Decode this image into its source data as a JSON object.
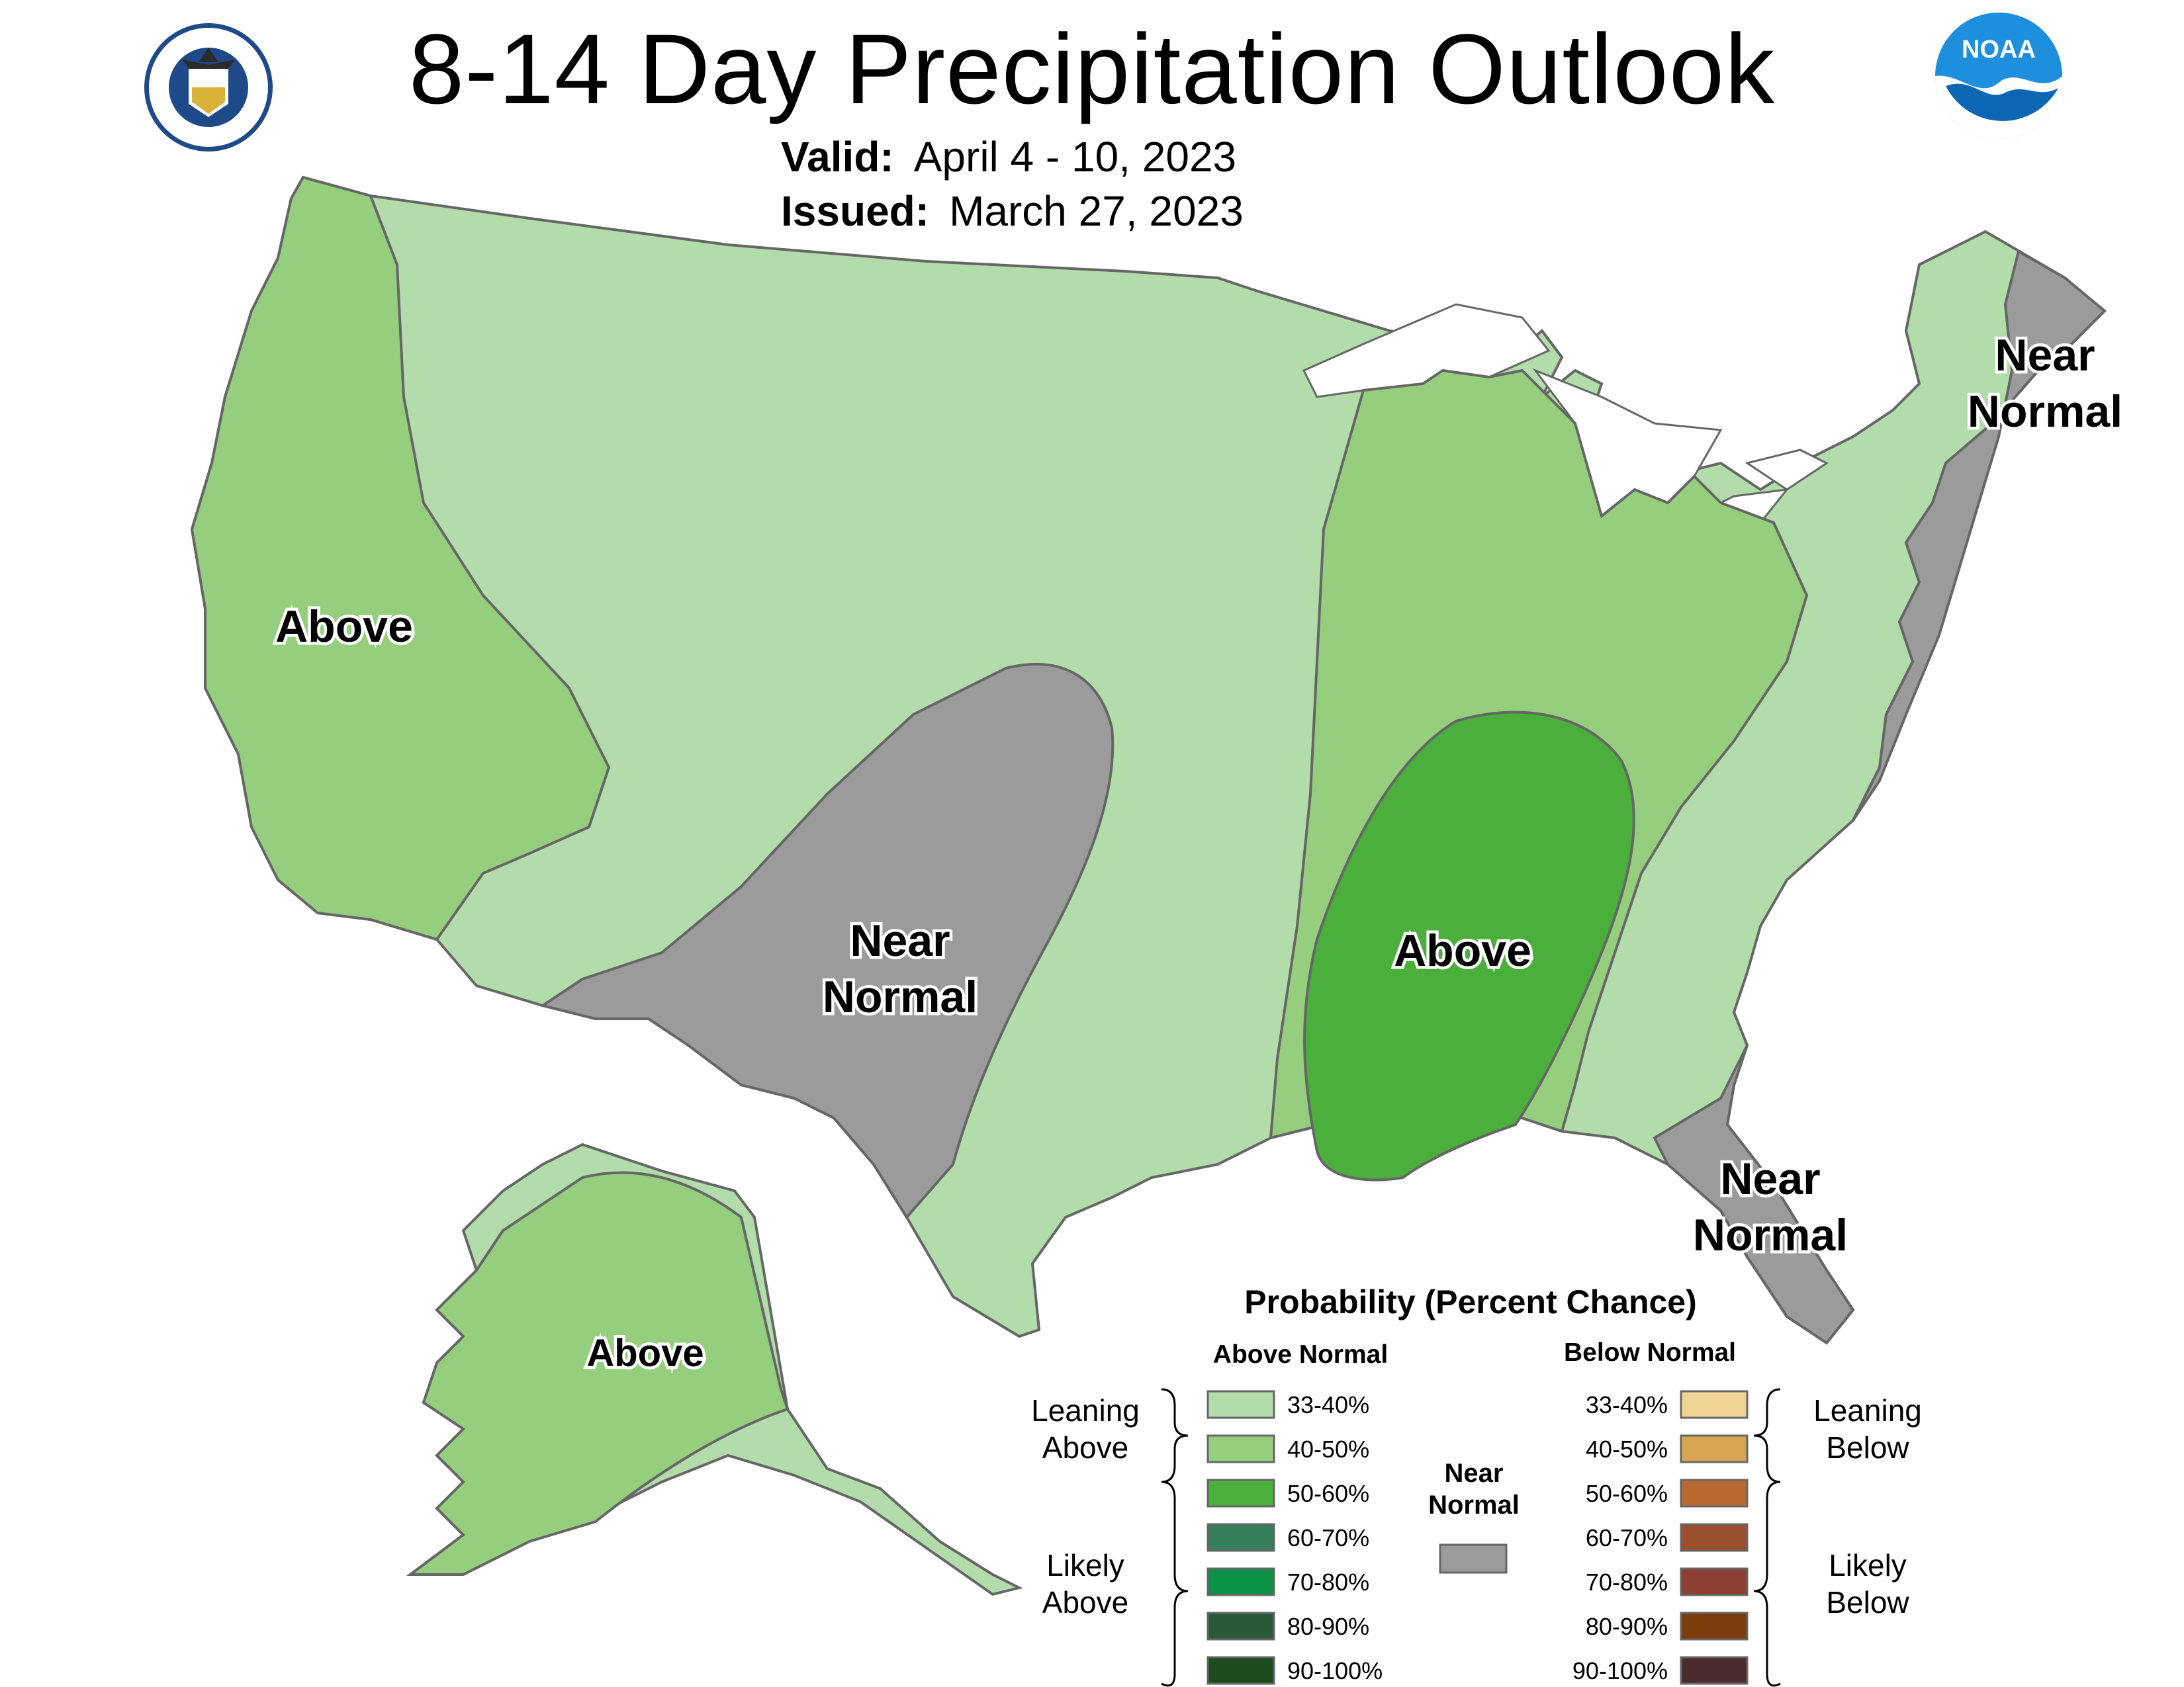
{
  "title": "8-14 Day Precipitation Outlook",
  "valid_label": "Valid:",
  "valid_value": "April 4 - 10, 2023",
  "issued_label": "Issued:",
  "issued_value": "March 27, 2023",
  "logos": {
    "commerce_seal": "DEPARTMENT OF COMMERCE · UNITED STATES OF AMERICA",
    "noaa": "NOAA"
  },
  "regions": [
    {
      "id": "west",
      "label": "Above"
    },
    {
      "id": "southwest",
      "label_line1": "Near",
      "label_line2": "Normal"
    },
    {
      "id": "midsouth",
      "label": "Above"
    },
    {
      "id": "northeast",
      "label_line1": "Near",
      "label_line2": "Normal"
    },
    {
      "id": "florida",
      "label_line1": "Near",
      "label_line2": "Normal"
    },
    {
      "id": "alaska",
      "label": "Above"
    }
  ],
  "colors": {
    "above_33_40": "#b3dcab",
    "above_40_50": "#95cf7e",
    "above_50_60": "#4aaf3b",
    "above_60_70": "#35805a",
    "above_70_80": "#0b9247",
    "above_80_90": "#295939",
    "above_90_100": "#1d4b1d",
    "near_normal": "#9b9b9b",
    "below_33_40": "#f0d495",
    "below_40_50": "#d8a650",
    "below_50_60": "#b96830",
    "below_60_70": "#9c4f2d",
    "below_70_80": "#8d3f31",
    "below_80_90": "#7c3c0b",
    "below_90_100": "#4c2a2c"
  },
  "legend": {
    "title": "Probability (Percent Chance)",
    "above_header": "Above Normal",
    "below_header": "Below Normal",
    "above_items": [
      "33-40%",
      "40-50%",
      "50-60%",
      "60-70%",
      "70-80%",
      "80-90%",
      "90-100%"
    ],
    "below_items": [
      "33-40%",
      "40-50%",
      "50-60%",
      "60-70%",
      "70-80%",
      "80-90%",
      "90-100%"
    ],
    "leaning_above": [
      "Leaning",
      "Above"
    ],
    "likely_above": [
      "Likely",
      "Above"
    ],
    "leaning_below": [
      "Leaning",
      "Below"
    ],
    "likely_below": [
      "Likely",
      "Below"
    ],
    "near_normal": [
      "Near",
      "Normal"
    ]
  }
}
